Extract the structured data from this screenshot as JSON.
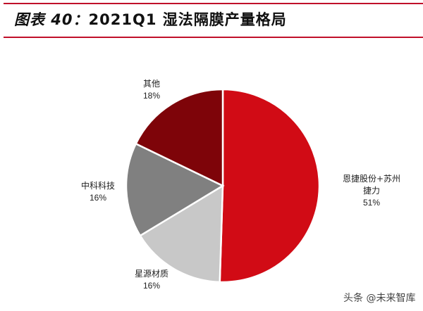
{
  "header": {
    "title_prefix": "图表 40：",
    "title_main": "2021Q1 湿法隔膜产量格局"
  },
  "colors": {
    "rule": "#c0102a",
    "slices": [
      "#d10b15",
      "#c8c8c8",
      "#808080",
      "#7e0409"
    ]
  },
  "chart_data": {
    "type": "pie",
    "title": "2021Q1 湿法隔膜产量格局",
    "categories": [
      "恩捷股份+苏州捷力",
      "星源材质",
      "中科科技",
      "其他"
    ],
    "values": [
      51,
      16,
      16,
      18
    ],
    "unit": "%",
    "start_angle": "12 o'clock, clockwise",
    "legend": "none (data labels outside slices)"
  },
  "labels": [
    {
      "name": "恩捷股份+苏州",
      "name2": "捷力",
      "pct": "51%"
    },
    {
      "name": "星源材质",
      "pct": "16%"
    },
    {
      "name": "中科科技",
      "pct": "16%"
    },
    {
      "name": "其他",
      "pct": "18%"
    }
  ],
  "watermark": "头条 @未来智库"
}
